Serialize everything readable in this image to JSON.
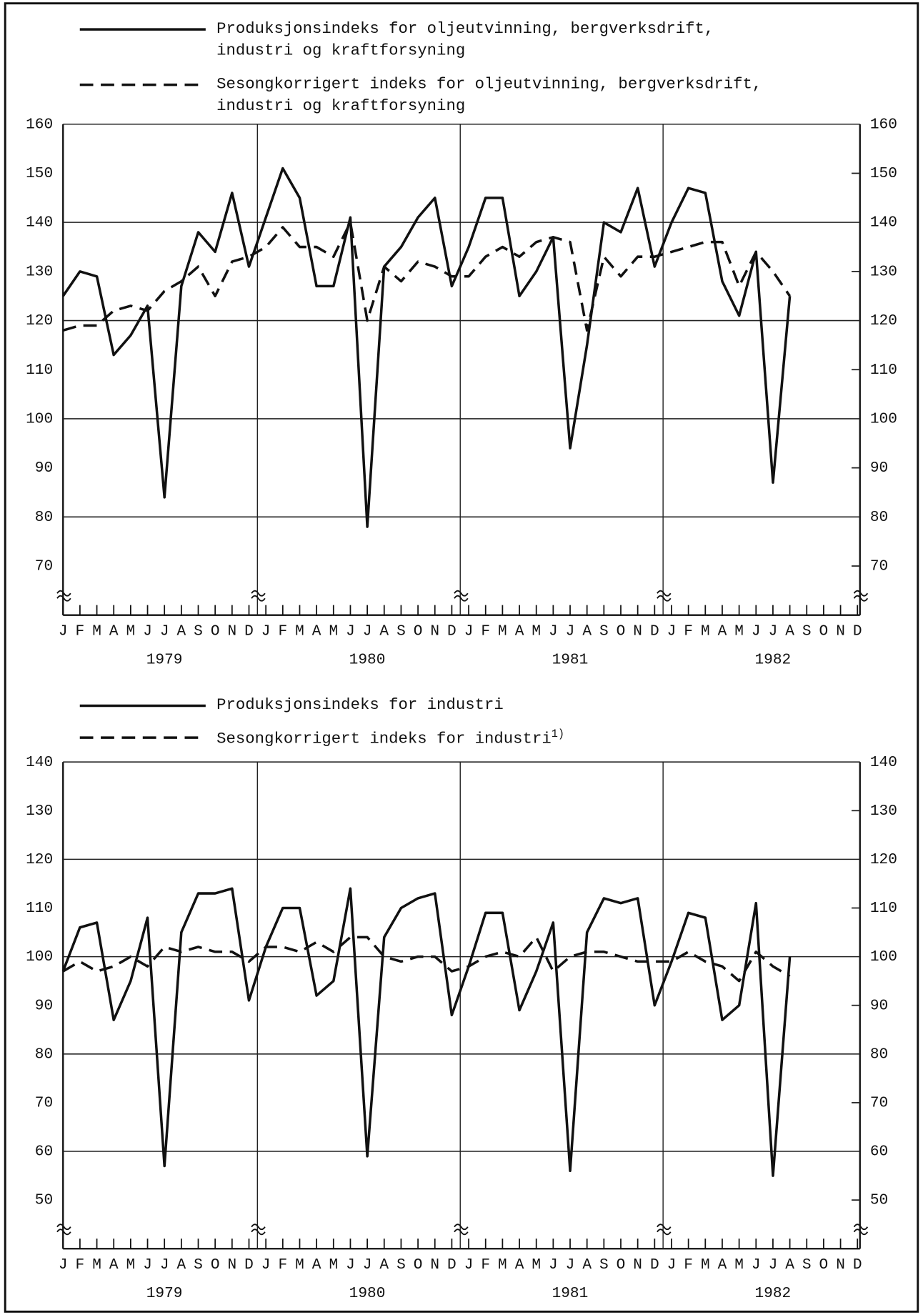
{
  "chart_data": [
    {
      "type": "line",
      "categories": [
        "J",
        "F",
        "M",
        "A",
        "M",
        "J",
        "J",
        "A",
        "S",
        "O",
        "N",
        "D",
        "J",
        "F",
        "M",
        "A",
        "M",
        "J",
        "J",
        "A",
        "S",
        "O",
        "N",
        "D",
        "J",
        "F",
        "M",
        "A",
        "M",
        "J",
        "J",
        "A",
        "S",
        "O",
        "N",
        "D",
        "J",
        "F",
        "M",
        "A",
        "M",
        "J",
        "J",
        "A",
        "S",
        "O",
        "N",
        "D"
      ],
      "year_labels": [
        "1979",
        "1980",
        "1981",
        "1982"
      ],
      "series": [
        {
          "name": "Produksjonsindeks for oljeutvinning, bergverksdrift, industri og kraftforsyning",
          "color": "#111111",
          "line_style": "solid",
          "values": [
            125,
            130,
            129,
            113,
            117,
            123,
            84,
            127,
            138,
            134,
            146,
            131,
            141,
            151,
            145,
            127,
            127,
            141,
            78,
            131,
            135,
            141,
            145,
            127,
            135,
            145,
            145,
            125,
            130,
            137,
            94,
            115,
            140,
            138,
            147,
            131,
            140,
            147,
            146,
            128,
            121,
            134,
            87,
            125,
            null,
            null,
            null,
            null
          ]
        },
        {
          "name": "Sesongkorrigert indeks for oljeutvinning, bergverksdrift, industri og kraftforsyning",
          "color": "#111111",
          "line_style": "dashed",
          "values": [
            118,
            119,
            119,
            122,
            123,
            122,
            126,
            128,
            131,
            125,
            132,
            133,
            135,
            139,
            135,
            135,
            133,
            140,
            120,
            131,
            128,
            132,
            131,
            129,
            129,
            133,
            135,
            133,
            136,
            137,
            136,
            118,
            133,
            129,
            133,
            133,
            134,
            135,
            136,
            136,
            127,
            134,
            130,
            125,
            null,
            null,
            null,
            null
          ]
        }
      ],
      "ylim": [
        60,
        160
      ],
      "yticks": [
        70,
        80,
        90,
        100,
        110,
        120,
        130,
        140,
        150,
        160
      ],
      "grid": true
    },
    {
      "type": "line",
      "categories": [
        "J",
        "F",
        "M",
        "A",
        "M",
        "J",
        "J",
        "A",
        "S",
        "O",
        "N",
        "D",
        "J",
        "F",
        "M",
        "A",
        "M",
        "J",
        "J",
        "A",
        "S",
        "O",
        "N",
        "D",
        "J",
        "F",
        "M",
        "A",
        "M",
        "J",
        "J",
        "A",
        "S",
        "O",
        "N",
        "D",
        "J",
        "F",
        "M",
        "A",
        "M",
        "J",
        "J",
        "A",
        "S",
        "O",
        "N",
        "D"
      ],
      "year_labels": [
        "1979",
        "1980",
        "1981",
        "1982"
      ],
      "series": [
        {
          "name": "Produksjonsindeks for industri",
          "color": "#111111",
          "line_style": "solid",
          "values": [
            97,
            106,
            107,
            87,
            95,
            108,
            57,
            105,
            113,
            113,
            114,
            91,
            102,
            110,
            110,
            92,
            95,
            114,
            59,
            104,
            110,
            112,
            113,
            88,
            98,
            109,
            109,
            89,
            97,
            107,
            56,
            105,
            112,
            111,
            112,
            90,
            99,
            109,
            108,
            87,
            90,
            111,
            55,
            100,
            null,
            null,
            null,
            null
          ]
        },
        {
          "name": "Sesongkorrigert indeks for industri",
          "footnote": "1)",
          "color": "#111111",
          "line_style": "dashed",
          "values": [
            97,
            99,
            97,
            98,
            100,
            98,
            102,
            101,
            102,
            101,
            101,
            99,
            102,
            102,
            101,
            103,
            101,
            104,
            104,
            100,
            99,
            100,
            100,
            97,
            98,
            100,
            101,
            100,
            104,
            97,
            100,
            101,
            101,
            100,
            99,
            99,
            99,
            101,
            99,
            98,
            95,
            101,
            98,
            96,
            null,
            null,
            null,
            null
          ]
        }
      ],
      "ylim": [
        40,
        140
      ],
      "yticks": [
        50,
        60,
        70,
        80,
        90,
        100,
        110,
        120,
        130,
        140
      ],
      "grid": true
    }
  ]
}
